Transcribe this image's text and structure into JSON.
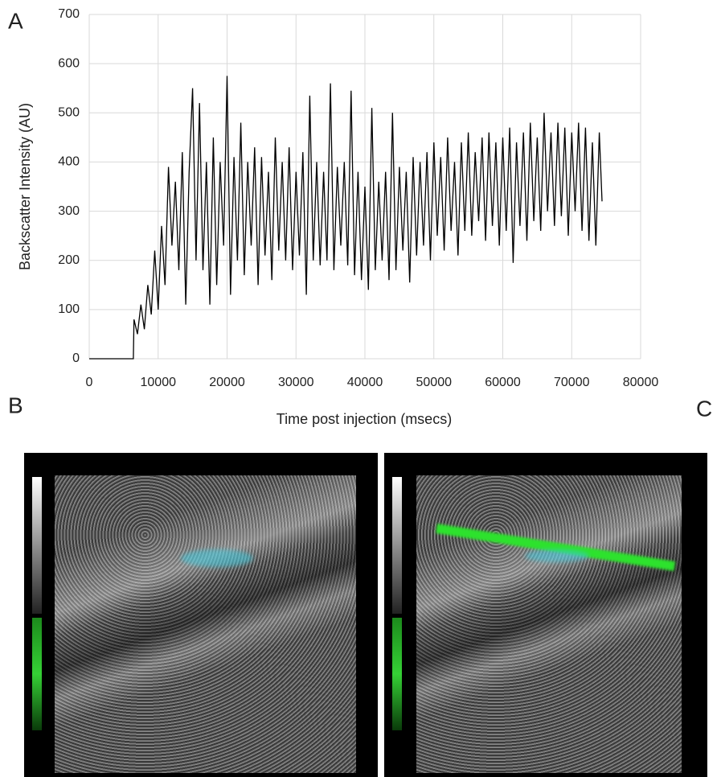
{
  "chart_data": {
    "type": "line",
    "panel_labels": [
      "A",
      "B",
      "C"
    ],
    "xlabel": "Time post injection (msecs)",
    "ylabel": "Backscatter Intensity (AU)",
    "color": "#000000",
    "grid": true,
    "xlim": [
      0,
      80000
    ],
    "ylim": [
      0,
      700
    ],
    "xticks": [
      0,
      10000,
      20000,
      30000,
      40000,
      50000,
      60000,
      70000,
      80000
    ],
    "yticks": [
      0,
      100,
      200,
      300,
      400,
      500,
      600,
      700
    ],
    "x": [
      0,
      6400,
      6500,
      7000,
      7500,
      8000,
      8500,
      9000,
      9500,
      10000,
      10500,
      11000,
      11500,
      12000,
      12500,
      13000,
      13500,
      14000,
      14500,
      15000,
      15500,
      16000,
      16500,
      17000,
      17500,
      18000,
      18500,
      19000,
      19500,
      20000,
      20500,
      21000,
      21500,
      22000,
      22500,
      23000,
      23500,
      24000,
      24500,
      25000,
      25500,
      26000,
      26500,
      27000,
      27500,
      28000,
      28500,
      29000,
      29500,
      30000,
      30500,
      31000,
      31500,
      32000,
      32500,
      33000,
      33500,
      34000,
      34500,
      35000,
      35500,
      36000,
      36500,
      37000,
      37500,
      38000,
      38500,
      39000,
      39500,
      40000,
      40500,
      41000,
      41500,
      42000,
      42500,
      43000,
      43500,
      44000,
      44500,
      45000,
      45500,
      46000,
      46500,
      47000,
      47500,
      48000,
      48500,
      49000,
      49500,
      50000,
      50500,
      51000,
      51500,
      52000,
      52500,
      53000,
      53500,
      54000,
      54500,
      55000,
      55500,
      56000,
      56500,
      57000,
      57500,
      58000,
      58500,
      59000,
      59500,
      60000,
      60500,
      61000,
      61500,
      62000,
      62500,
      63000,
      63500,
      64000,
      64500,
      65000,
      65500,
      66000,
      66500,
      67000,
      67500,
      68000,
      68500,
      69000,
      69500,
      70000,
      70500,
      71000,
      71500,
      72000,
      72500,
      73000,
      73500,
      74000,
      74400
    ],
    "values": [
      0,
      0,
      80,
      50,
      110,
      60,
      150,
      90,
      220,
      100,
      270,
      150,
      390,
      230,
      360,
      180,
      420,
      110,
      380,
      550,
      200,
      520,
      180,
      400,
      110,
      450,
      150,
      400,
      230,
      575,
      130,
      410,
      200,
      480,
      170,
      400,
      230,
      430,
      150,
      410,
      210,
      380,
      160,
      450,
      220,
      400,
      200,
      430,
      180,
      380,
      210,
      420,
      130,
      535,
      200,
      400,
      190,
      380,
      200,
      560,
      180,
      390,
      230,
      400,
      190,
      545,
      170,
      380,
      160,
      350,
      140,
      510,
      180,
      360,
      200,
      380,
      160,
      500,
      180,
      390,
      220,
      380,
      155,
      410,
      210,
      400,
      230,
      420,
      200,
      440,
      250,
      410,
      220,
      450,
      260,
      400,
      210,
      440,
      260,
      460,
      250,
      420,
      280,
      450,
      240,
      460,
      270,
      440,
      230,
      450,
      260,
      470,
      195,
      440,
      270,
      460,
      240,
      480,
      280,
      450,
      260,
      500,
      300,
      460,
      270,
      480,
      290,
      470,
      250,
      460,
      300,
      480,
      260,
      470,
      240,
      440,
      230,
      460,
      320
    ]
  }
}
